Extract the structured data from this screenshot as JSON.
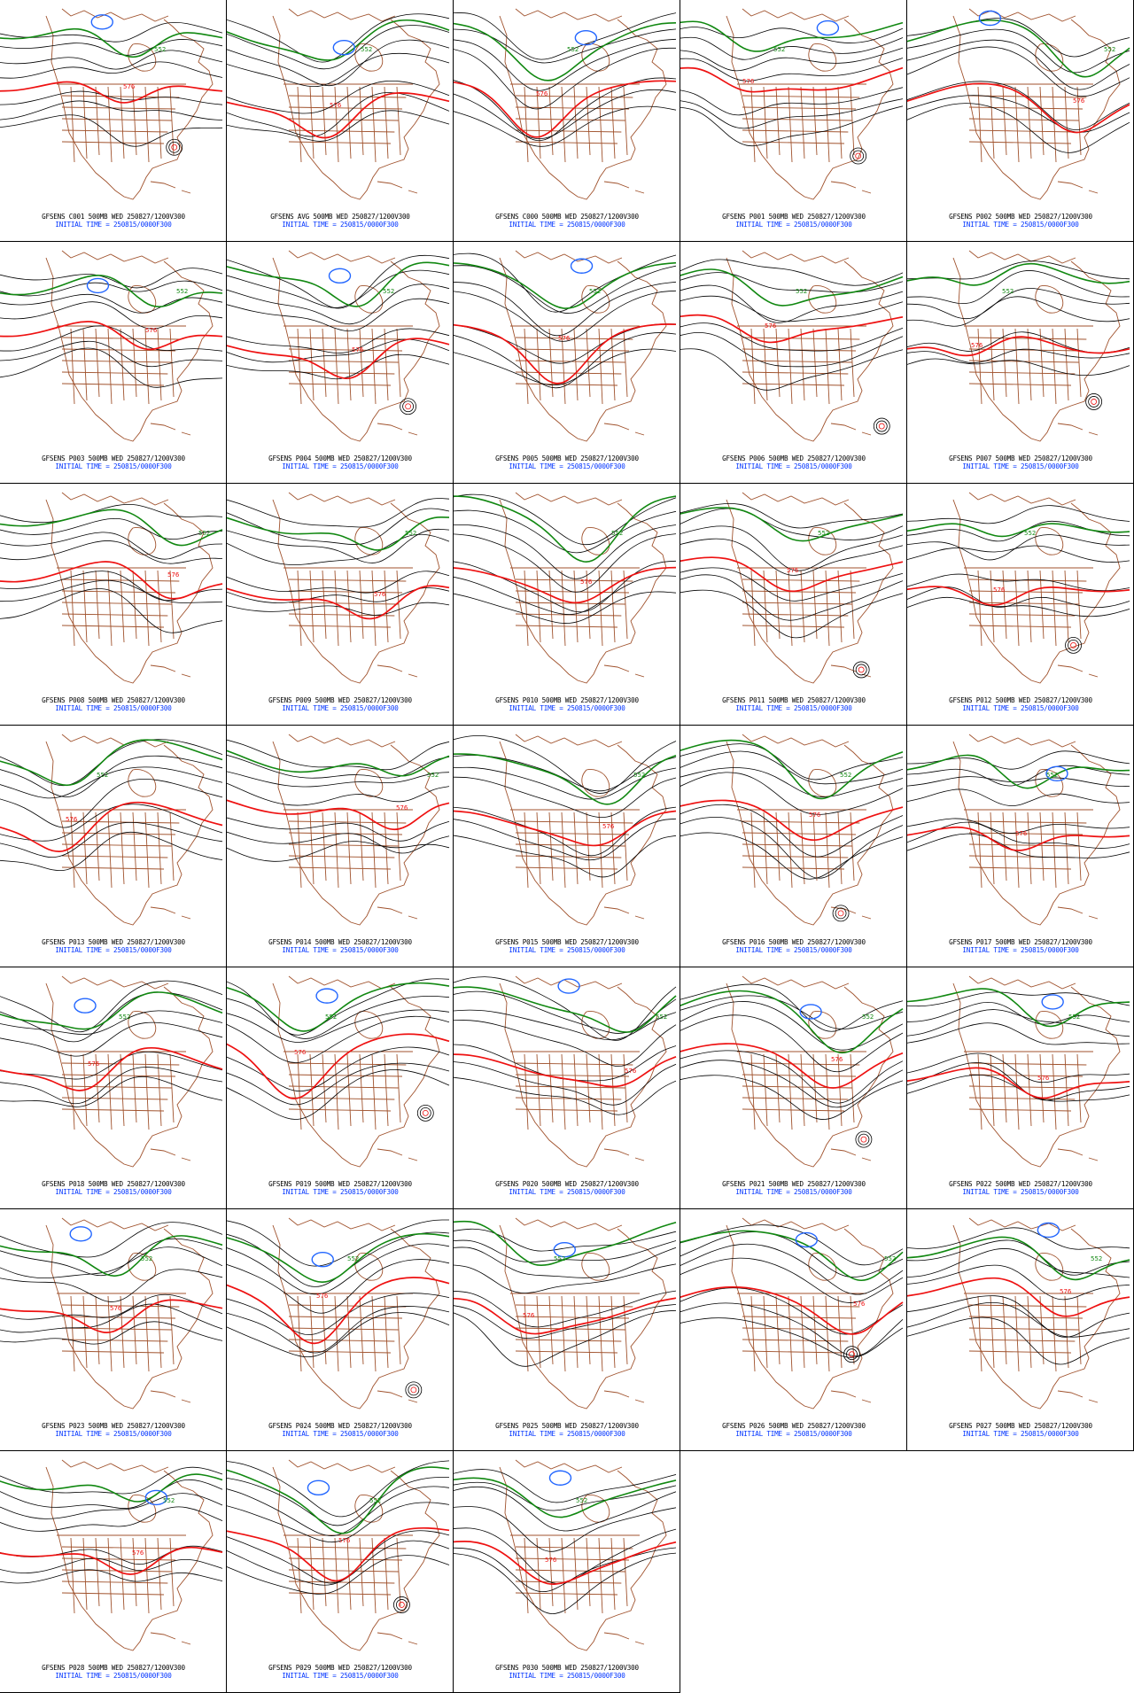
{
  "colors": {
    "contour": "#000000",
    "contour_576": "#ee1111",
    "contour_552": "#118811",
    "contour_low": "#2266ff",
    "map_lines": "#a0522d",
    "label_line1": "#000000",
    "label_line2": "#0033ff"
  },
  "contour_label_high": "576",
  "contour_label_low": "552",
  "initial_time_line": "INITIAL TIME = 250815/0000F300",
  "panels": [
    {
      "label": "GFSENS C001 500MB WED 250827/1200V300"
    },
    {
      "label": "GFSENS AVG 500MB WED 250827/1200V300"
    },
    {
      "label": "GFSENS C000 500MB WED 250827/1200V300"
    },
    {
      "label": "GFSENS P001 500MB WED 250827/1200V300"
    },
    {
      "label": "GFSENS P002 500MB WED 250827/1200V300"
    },
    {
      "label": "GFSENS P003 500MB WED 250827/1200V300"
    },
    {
      "label": "GFSENS P004 500MB WED 250827/1200V300"
    },
    {
      "label": "GFSENS P005 500MB WED 250827/1200V300"
    },
    {
      "label": "GFSENS P006 500MB WED 250827/1200V300"
    },
    {
      "label": "GFSENS P007 500MB WED 250827/1200V300"
    },
    {
      "label": "GFSENS P008 500MB WED 250827/1200V300"
    },
    {
      "label": "GFSENS P009 500MB WED 250827/1200V300"
    },
    {
      "label": "GFSENS P010 500MB WED 250827/1200V300"
    },
    {
      "label": "GFSENS P011 500MB WED 250827/1200V300"
    },
    {
      "label": "GFSENS P012 500MB WED 250827/1200V300"
    },
    {
      "label": "GFSENS P013 500MB WED 250827/1200V300"
    },
    {
      "label": "GFSENS P014 500MB WED 250827/1200V300"
    },
    {
      "label": "GFSENS P015 500MB WED 250827/1200V300"
    },
    {
      "label": "GFSENS P016 500MB WED 250827/1200V300"
    },
    {
      "label": "GFSENS P017 500MB WED 250827/1200V300"
    },
    {
      "label": "GFSENS P018 500MB WED 250827/1200V300"
    },
    {
      "label": "GFSENS P019 500MB WED 250827/1200V300"
    },
    {
      "label": "GFSENS P020 500MB WED 250827/1200V300"
    },
    {
      "label": "GFSENS P021 500MB WED 250827/1200V300"
    },
    {
      "label": "GFSENS P022 500MB WED 250827/1200V300"
    },
    {
      "label": "GFSENS P023 500MB WED 250827/1200V300"
    },
    {
      "label": "GFSENS P024 500MB WED 250827/1200V300"
    },
    {
      "label": "GFSENS P025 500MB WED 250827/1200V300"
    },
    {
      "label": "GFSENS P026 500MB WED 250827/1200V300"
    },
    {
      "label": "GFSENS P027 500MB WED 250827/1200V300"
    },
    {
      "label": "GFSENS P028 500MB WED 250827/1200V300"
    },
    {
      "label": "GFSENS P029 500MB WED 250827/1200V300"
    },
    {
      "label": "GFSENS P030 500MB WED 250827/1200V300"
    }
  ]
}
